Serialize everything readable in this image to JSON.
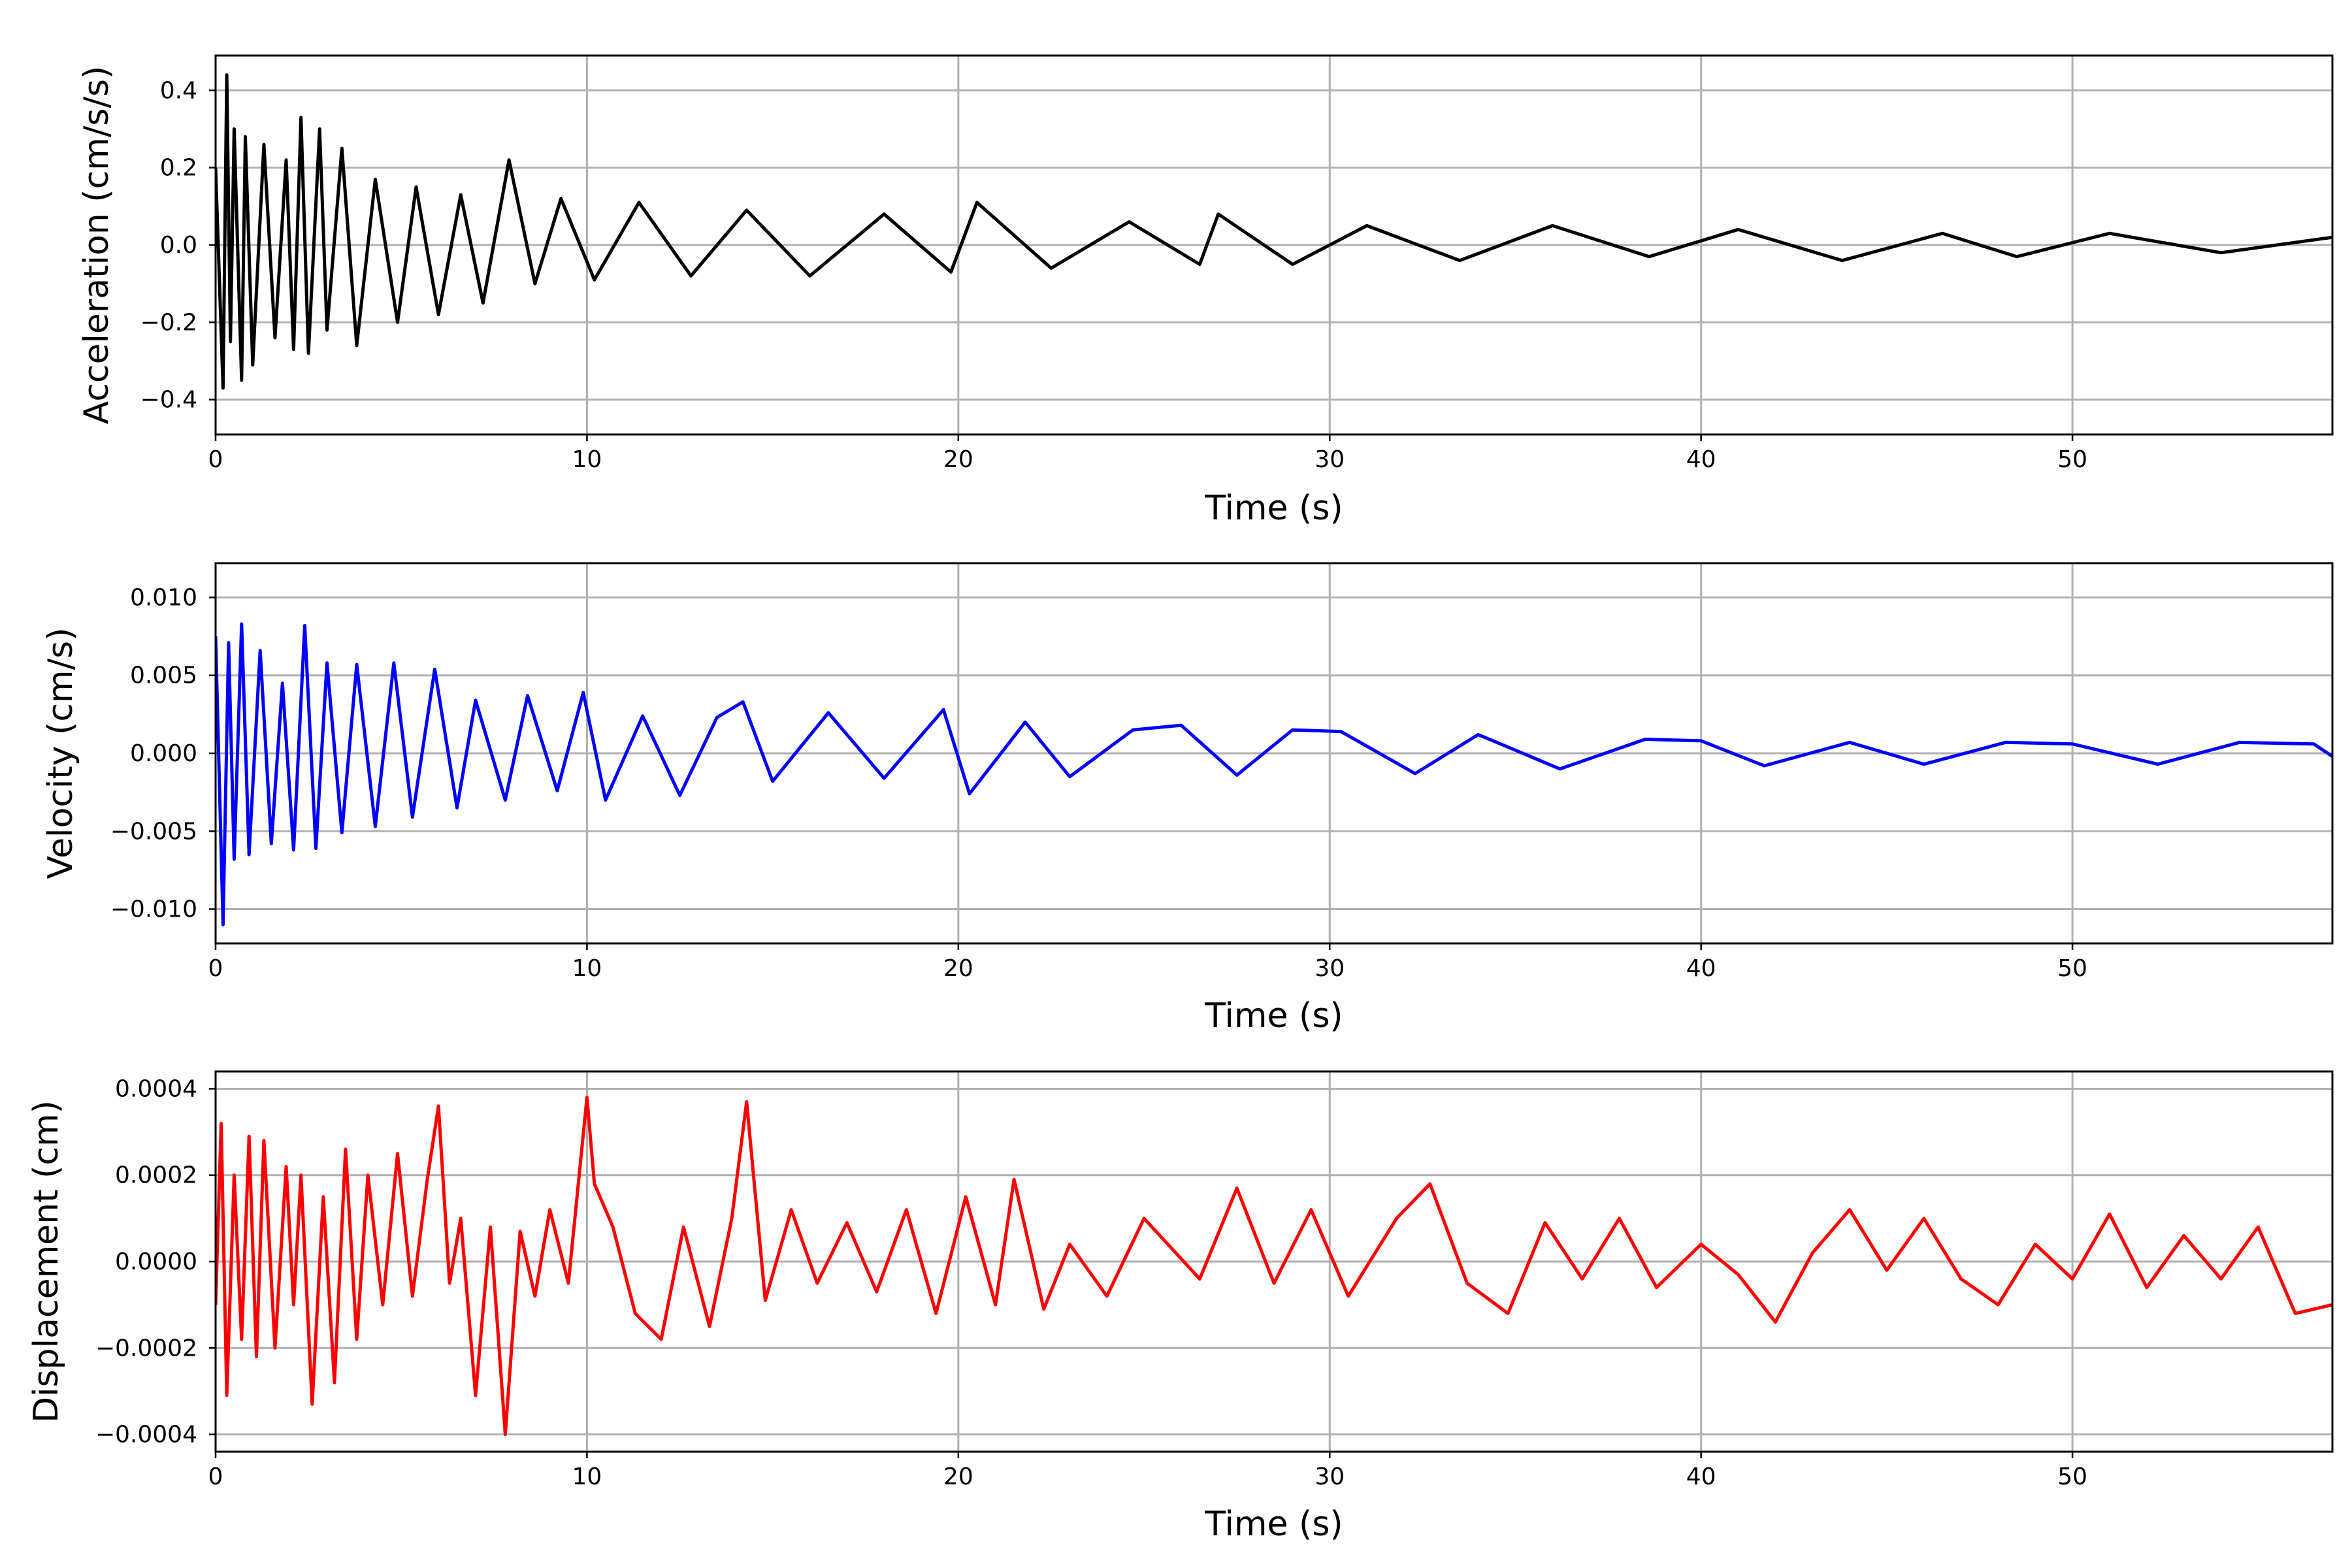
{
  "chart_data": [
    {
      "type": "line",
      "color": "#000000",
      "xlabel": "Time (s)",
      "ylabel": "Acceleration (cm/s/s)",
      "xlim": [
        0,
        57
      ],
      "ylim": [
        -0.49,
        0.49
      ],
      "xticks": [
        0,
        10,
        20,
        30,
        40,
        50
      ],
      "xtick_labels": [
        "0",
        "10",
        "20",
        "30",
        "40",
        "50"
      ],
      "yticks": [
        0.4,
        0.2,
        0.0,
        -0.2,
        -0.4
      ],
      "ytick_labels": [
        "0.4",
        "0.2",
        "0.0",
        "−0.2",
        "−0.4"
      ],
      "grid": true,
      "series": [
        {
          "x": [
            0,
            0.2,
            0.3,
            0.4,
            0.5,
            0.7,
            0.8,
            1.0,
            1.3,
            1.6,
            1.9,
            2.1,
            2.3,
            2.5,
            2.8,
            3.0,
            3.4,
            3.8,
            4.3,
            4.9,
            5.4,
            6.0,
            6.6,
            7.2,
            7.9,
            8.6,
            9.3,
            10.2,
            11.4,
            12.8,
            14.3,
            16.0,
            18.0,
            19.8,
            20.5,
            22.5,
            24.6,
            26.5,
            27.0,
            29.0,
            31.0,
            33.5,
            36.0,
            38.6,
            41.0,
            43.8,
            46.5,
            48.5,
            51.0,
            54.0,
            57.0
          ],
          "y": [
            0.2,
            -0.37,
            0.44,
            -0.25,
            0.3,
            -0.35,
            0.28,
            -0.31,
            0.26,
            -0.24,
            0.22,
            -0.27,
            0.33,
            -0.28,
            0.3,
            -0.22,
            0.25,
            -0.26,
            0.17,
            -0.2,
            0.15,
            -0.18,
            0.13,
            -0.15,
            0.22,
            -0.1,
            0.12,
            -0.09,
            0.11,
            -0.08,
            0.09,
            -0.08,
            0.08,
            -0.07,
            0.11,
            -0.06,
            0.06,
            -0.05,
            0.08,
            -0.05,
            0.05,
            -0.04,
            0.05,
            -0.03,
            0.04,
            -0.04,
            0.03,
            -0.03,
            0.03,
            -0.02,
            0.02
          ]
        }
      ]
    },
    {
      "type": "line",
      "color": "#0000ff",
      "xlabel": "Time (s)",
      "ylabel": "Velocity (cm/s)",
      "xlim": [
        0,
        57
      ],
      "ylim": [
        -0.0122,
        0.0122
      ],
      "xticks": [
        0,
        10,
        20,
        30,
        40,
        50
      ],
      "xtick_labels": [
        "0",
        "10",
        "20",
        "30",
        "40",
        "50"
      ],
      "yticks": [
        0.01,
        0.005,
        0.0,
        -0.005,
        -0.01
      ],
      "ytick_labels": [
        "0.010",
        "0.005",
        "0.000",
        "−0.005",
        "−0.010"
      ],
      "grid": true,
      "series": [
        {
          "x": [
            0,
            0.2,
            0.35,
            0.5,
            0.7,
            0.9,
            1.2,
            1.5,
            1.8,
            2.1,
            2.4,
            2.7,
            3.0,
            3.4,
            3.8,
            4.3,
            4.8,
            5.3,
            5.9,
            6.5,
            7.0,
            7.8,
            8.4,
            9.2,
            9.9,
            10.5,
            11.5,
            12.5,
            13.5,
            14.2,
            15.0,
            16.5,
            18.0,
            19.6,
            20.3,
            21.8,
            23.0,
            24.7,
            26.0,
            27.5,
            29.0,
            30.3,
            32.3,
            34.0,
            36.2,
            38.5,
            40.0,
            41.7,
            44.0,
            46.0,
            48.2,
            50.0,
            52.3,
            54.5,
            56.5,
            57.0
          ],
          "y": [
            0.0075,
            -0.011,
            0.0071,
            -0.0068,
            0.0083,
            -0.0065,
            0.0066,
            -0.0058,
            0.0045,
            -0.0062,
            0.0082,
            -0.0061,
            0.0058,
            -0.0051,
            0.0057,
            -0.0047,
            0.0058,
            -0.0041,
            0.0054,
            -0.0035,
            0.0034,
            -0.003,
            0.0037,
            -0.0024,
            0.0039,
            -0.003,
            0.0024,
            -0.0027,
            0.0023,
            0.0033,
            -0.0018,
            0.0026,
            -0.0016,
            0.0028,
            -0.0026,
            0.002,
            -0.0015,
            0.0015,
            0.0018,
            -0.0014,
            0.0015,
            0.0014,
            -0.0013,
            0.0012,
            -0.001,
            0.0009,
            0.0008,
            -0.0008,
            0.0007,
            -0.0007,
            0.0007,
            0.0006,
            -0.0007,
            0.0007,
            0.0006,
            -0.0002
          ]
        }
      ]
    },
    {
      "type": "line",
      "color": "#ff0000",
      "xlabel": "Time (s)",
      "ylabel": "Displacement (cm)",
      "xlim": [
        0,
        57
      ],
      "ylim": [
        -0.00044,
        0.00044
      ],
      "xticks": [
        0,
        10,
        20,
        30,
        40,
        50
      ],
      "xtick_labels": [
        "0",
        "10",
        "20",
        "30",
        "40",
        "50"
      ],
      "yticks": [
        0.0004,
        0.0002,
        0.0,
        -0.0002,
        -0.0004
      ],
      "ytick_labels": [
        "0.0004",
        "0.0002",
        "0.0000",
        "−0.0002",
        "−0.0004"
      ],
      "grid": true,
      "series": [
        {
          "x": [
            0,
            0.15,
            0.3,
            0.5,
            0.7,
            0.9,
            1.1,
            1.3,
            1.6,
            1.9,
            2.1,
            2.3,
            2.6,
            2.9,
            3.2,
            3.5,
            3.8,
            4.1,
            4.5,
            4.9,
            5.3,
            5.7,
            6.0,
            6.3,
            6.6,
            7.0,
            7.4,
            7.8,
            8.2,
            8.6,
            9.0,
            9.5,
            10.0,
            10.2,
            10.7,
            11.3,
            12.0,
            12.6,
            13.3,
            13.9,
            14.3,
            14.8,
            15.5,
            16.2,
            17.0,
            17.8,
            18.6,
            19.4,
            20.2,
            21.0,
            21.5,
            22.3,
            23.0,
            24.0,
            25.0,
            26.5,
            27.5,
            28.5,
            29.5,
            30.5,
            31.8,
            32.7,
            33.7,
            34.8,
            35.8,
            36.8,
            37.8,
            38.8,
            40.0,
            41.0,
            42.0,
            43.0,
            44.0,
            45.0,
            46.0,
            47.0,
            48.0,
            49.0,
            50.0,
            51.0,
            52.0,
            53.0,
            54.0,
            55.0,
            56.0,
            57.0
          ],
          "y": [
            -0.0001,
            0.00032,
            -0.00031,
            0.0002,
            -0.00018,
            0.00029,
            -0.00022,
            0.00028,
            -0.0002,
            0.00022,
            -0.0001,
            0.0002,
            -0.00033,
            0.00015,
            -0.00028,
            0.00026,
            -0.00018,
            0.0002,
            -0.0001,
            0.00025,
            -8e-05,
            0.00019,
            0.00036,
            -5e-05,
            0.0001,
            -0.00031,
            8e-05,
            -0.0004,
            7e-05,
            -8e-05,
            0.00012,
            -5e-05,
            0.00038,
            0.00018,
            8e-05,
            -0.00012,
            -0.00018,
            8e-05,
            -0.00015,
            0.0001,
            0.00037,
            -9e-05,
            0.00012,
            -5e-05,
            9e-05,
            -7e-05,
            0.00012,
            -0.00012,
            0.00015,
            -0.0001,
            0.00019,
            -0.00011,
            4e-05,
            -8e-05,
            0.0001,
            -4e-05,
            0.00017,
            -5e-05,
            0.00012,
            -8e-05,
            0.0001,
            0.00018,
            -5e-05,
            -0.00012,
            9e-05,
            -4e-05,
            0.0001,
            -6e-05,
            4e-05,
            -3e-05,
            -0.00014,
            2e-05,
            0.00012,
            -2e-05,
            0.0001,
            -4e-05,
            -0.0001,
            4e-05,
            -4e-05,
            0.00011,
            -6e-05,
            6e-05,
            -4e-05,
            8e-05,
            -0.00012,
            -0.0001
          ]
        }
      ]
    }
  ]
}
